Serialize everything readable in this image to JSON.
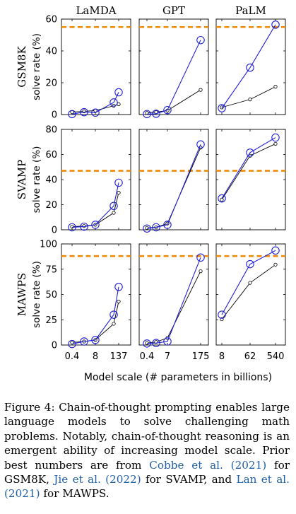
{
  "chart_data": {
    "type": "line",
    "columns": [
      "LaMDA",
      "GPT",
      "PaLM"
    ],
    "rows": [
      {
        "name": "GSM8K",
        "ylabel": "solve rate (%)",
        "ylim": [
          0,
          60
        ],
        "yticks": [
          "0",
          "20",
          "40",
          "60"
        ],
        "prior_best": 55
      },
      {
        "name": "SVAMP",
        "ylabel": "solve rate (%)",
        "ylim": [
          0,
          80
        ],
        "yticks": [
          "0",
          "20",
          "40",
          "60",
          "80"
        ],
        "prior_best": 47
      },
      {
        "name": "MAWPS",
        "ylabel": "solve rate (%)",
        "ylim": [
          0,
          100
        ],
        "yticks": [
          "0",
          "25",
          "50",
          "75",
          "100"
        ],
        "prior_best": 88
      }
    ],
    "xticks": [
      [
        "0.4",
        "8",
        "137"
      ],
      [
        "0.4",
        "7",
        "175"
      ],
      [
        "8",
        "62",
        "540"
      ]
    ],
    "xlabel": "Model scale (# parameters in billions)",
    "colors": {
      "chain_of_thought": "#1f1fd6",
      "standard": "#000000",
      "prior_best": "#f08a00"
    },
    "panels": [
      [
        {
          "standard": [
            1.5,
            2.0,
            2.5,
            5.5,
            6.5
          ],
          "cot": [
            0.3,
            1.5,
            1.2,
            7.6,
            14.0
          ]
        },
        {
          "standard": [
            1.0,
            1.5,
            2.5,
            15.5
          ],
          "cot": [
            0.3,
            0.5,
            2.8,
            46.8
          ]
        },
        {
          "standard": [
            4.5,
            9.5,
            17.5
          ],
          "cot": [
            4.0,
            29.5,
            56.5
          ]
        }
      ],
      [
        {
          "standard": [
            2.5,
            3.0,
            4.0,
            13.5,
            29.5
          ],
          "cot": [
            2.0,
            2.5,
            4.0,
            19.0,
            37.5
          ]
        },
        {
          "standard": [
            1.5,
            2.0,
            5.0,
            65.5
          ],
          "cot": [
            1.0,
            2.0,
            4.0,
            68.0
          ]
        },
        {
          "standard": [
            24.0,
            59.0,
            68.5
          ],
          "cot": [
            25.0,
            61.5,
            73.5
          ]
        }
      ],
      [
        {
          "standard": [
            2.5,
            3.5,
            5.0,
            21.0,
            43.0
          ],
          "cot": [
            1.0,
            3.5,
            5.0,
            30.0,
            57.5
          ]
        },
        {
          "standard": [
            2.0,
            3.0,
            7.0,
            73.0
          ],
          "cot": [
            1.5,
            2.0,
            3.5,
            86.5
          ]
        },
        {
          "standard": [
            25.5,
            61.5,
            79.5
          ],
          "cot": [
            30.0,
            80.0,
            93.5
          ]
        }
      ]
    ]
  },
  "caption": {
    "lead": "Figure 4:  Chain-of-thought prompting enables large language models to solve challenging math problems.  Notably, chain-of-thought reasoning is an emergent ability of increasing model scale. Prior best numbers are from ",
    "cite1": "Cobbe et al. (2021)",
    "mid1": " for GSM8K, ",
    "cite2": "Jie et al. (2022)",
    "mid2": " for SVAMP, and ",
    "cite3": "Lan et al. (2021)",
    "tail": " for MAWPS."
  }
}
